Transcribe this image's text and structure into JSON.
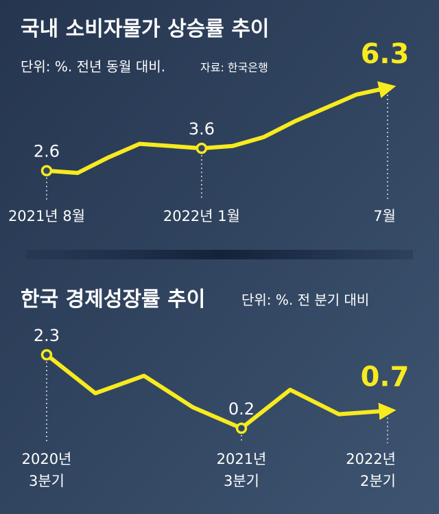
{
  "chart_data": [
    {
      "type": "line",
      "title": "국내 소비자물가 상승률 추이",
      "subtitle": "단위: %. 전년 동월 대비.",
      "source": "자료: 한국은행",
      "categories": [
        [
          "2021년 8월"
        ],
        null,
        null,
        null,
        null,
        [
          "2022년 1월"
        ],
        null,
        null,
        null,
        null,
        null,
        [
          "7월"
        ]
      ],
      "series": [
        {
          "color": "#f7ea1f",
          "values": [
            2.6,
            2.5,
            3.2,
            3.8,
            3.7,
            3.6,
            3.7,
            4.1,
            4.8,
            5.4,
            6.0,
            6.3
          ],
          "value_labels": [
            "2.6",
            null,
            null,
            null,
            null,
            "3.6",
            null,
            null,
            null,
            null,
            null,
            "6.3"
          ]
        }
      ]
    },
    {
      "type": "line",
      "title": "한국 경제성장률 추이",
      "subtitle": "단위: %. 전 분기 대비",
      "categories": [
        [
          "2020년",
          "3분기"
        ],
        null,
        null,
        null,
        [
          "2021년",
          "3분기"
        ],
        null,
        null,
        [
          "2022년",
          "2분기"
        ]
      ],
      "series": [
        {
          "color": "#f7ea1f",
          "values": [
            2.3,
            1.2,
            1.7,
            0.8,
            0.2,
            1.3,
            0.6,
            0.7
          ],
          "value_labels": [
            "2.3",
            null,
            null,
            null,
            "0.2",
            null,
            null,
            "0.7"
          ]
        }
      ]
    }
  ]
}
